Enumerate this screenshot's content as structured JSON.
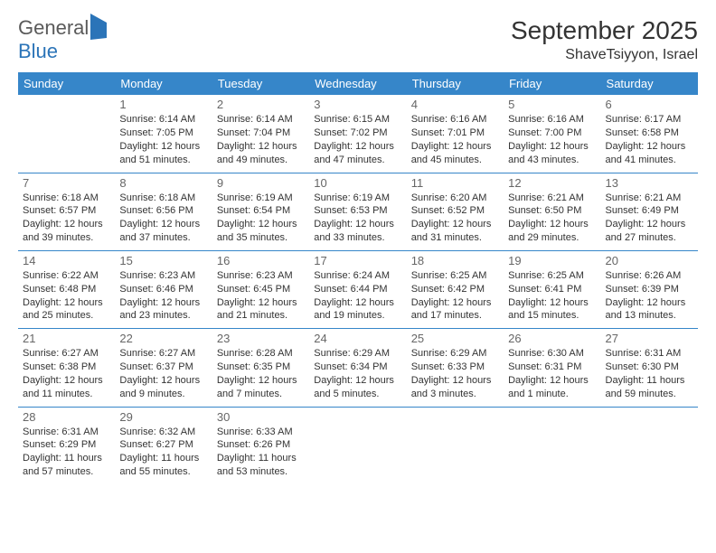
{
  "logo": {
    "word1": "General",
    "word2": "Blue"
  },
  "title": "September 2025",
  "location": "ShaveTsiyyon, Israel",
  "colors": {
    "header_bg": "#3686c9",
    "header_text": "#ffffff",
    "cell_border": "#3686c9",
    "daynum_color": "#666666",
    "body_text": "#333333",
    "logo_gray": "#5a5a5a",
    "logo_blue": "#2b74b8",
    "page_bg": "#ffffff"
  },
  "weekdays": [
    "Sunday",
    "Monday",
    "Tuesday",
    "Wednesday",
    "Thursday",
    "Friday",
    "Saturday"
  ],
  "weeks": [
    [
      null,
      {
        "n": "1",
        "sr": "Sunrise: 6:14 AM",
        "ss": "Sunset: 7:05 PM",
        "dl": "Daylight: 12 hours and 51 minutes."
      },
      {
        "n": "2",
        "sr": "Sunrise: 6:14 AM",
        "ss": "Sunset: 7:04 PM",
        "dl": "Daylight: 12 hours and 49 minutes."
      },
      {
        "n": "3",
        "sr": "Sunrise: 6:15 AM",
        "ss": "Sunset: 7:02 PM",
        "dl": "Daylight: 12 hours and 47 minutes."
      },
      {
        "n": "4",
        "sr": "Sunrise: 6:16 AM",
        "ss": "Sunset: 7:01 PM",
        "dl": "Daylight: 12 hours and 45 minutes."
      },
      {
        "n": "5",
        "sr": "Sunrise: 6:16 AM",
        "ss": "Sunset: 7:00 PM",
        "dl": "Daylight: 12 hours and 43 minutes."
      },
      {
        "n": "6",
        "sr": "Sunrise: 6:17 AM",
        "ss": "Sunset: 6:58 PM",
        "dl": "Daylight: 12 hours and 41 minutes."
      }
    ],
    [
      {
        "n": "7",
        "sr": "Sunrise: 6:18 AM",
        "ss": "Sunset: 6:57 PM",
        "dl": "Daylight: 12 hours and 39 minutes."
      },
      {
        "n": "8",
        "sr": "Sunrise: 6:18 AM",
        "ss": "Sunset: 6:56 PM",
        "dl": "Daylight: 12 hours and 37 minutes."
      },
      {
        "n": "9",
        "sr": "Sunrise: 6:19 AM",
        "ss": "Sunset: 6:54 PM",
        "dl": "Daylight: 12 hours and 35 minutes."
      },
      {
        "n": "10",
        "sr": "Sunrise: 6:19 AM",
        "ss": "Sunset: 6:53 PM",
        "dl": "Daylight: 12 hours and 33 minutes."
      },
      {
        "n": "11",
        "sr": "Sunrise: 6:20 AM",
        "ss": "Sunset: 6:52 PM",
        "dl": "Daylight: 12 hours and 31 minutes."
      },
      {
        "n": "12",
        "sr": "Sunrise: 6:21 AM",
        "ss": "Sunset: 6:50 PM",
        "dl": "Daylight: 12 hours and 29 minutes."
      },
      {
        "n": "13",
        "sr": "Sunrise: 6:21 AM",
        "ss": "Sunset: 6:49 PM",
        "dl": "Daylight: 12 hours and 27 minutes."
      }
    ],
    [
      {
        "n": "14",
        "sr": "Sunrise: 6:22 AM",
        "ss": "Sunset: 6:48 PM",
        "dl": "Daylight: 12 hours and 25 minutes."
      },
      {
        "n": "15",
        "sr": "Sunrise: 6:23 AM",
        "ss": "Sunset: 6:46 PM",
        "dl": "Daylight: 12 hours and 23 minutes."
      },
      {
        "n": "16",
        "sr": "Sunrise: 6:23 AM",
        "ss": "Sunset: 6:45 PM",
        "dl": "Daylight: 12 hours and 21 minutes."
      },
      {
        "n": "17",
        "sr": "Sunrise: 6:24 AM",
        "ss": "Sunset: 6:44 PM",
        "dl": "Daylight: 12 hours and 19 minutes."
      },
      {
        "n": "18",
        "sr": "Sunrise: 6:25 AM",
        "ss": "Sunset: 6:42 PM",
        "dl": "Daylight: 12 hours and 17 minutes."
      },
      {
        "n": "19",
        "sr": "Sunrise: 6:25 AM",
        "ss": "Sunset: 6:41 PM",
        "dl": "Daylight: 12 hours and 15 minutes."
      },
      {
        "n": "20",
        "sr": "Sunrise: 6:26 AM",
        "ss": "Sunset: 6:39 PM",
        "dl": "Daylight: 12 hours and 13 minutes."
      }
    ],
    [
      {
        "n": "21",
        "sr": "Sunrise: 6:27 AM",
        "ss": "Sunset: 6:38 PM",
        "dl": "Daylight: 12 hours and 11 minutes."
      },
      {
        "n": "22",
        "sr": "Sunrise: 6:27 AM",
        "ss": "Sunset: 6:37 PM",
        "dl": "Daylight: 12 hours and 9 minutes."
      },
      {
        "n": "23",
        "sr": "Sunrise: 6:28 AM",
        "ss": "Sunset: 6:35 PM",
        "dl": "Daylight: 12 hours and 7 minutes."
      },
      {
        "n": "24",
        "sr": "Sunrise: 6:29 AM",
        "ss": "Sunset: 6:34 PM",
        "dl": "Daylight: 12 hours and 5 minutes."
      },
      {
        "n": "25",
        "sr": "Sunrise: 6:29 AM",
        "ss": "Sunset: 6:33 PM",
        "dl": "Daylight: 12 hours and 3 minutes."
      },
      {
        "n": "26",
        "sr": "Sunrise: 6:30 AM",
        "ss": "Sunset: 6:31 PM",
        "dl": "Daylight: 12 hours and 1 minute."
      },
      {
        "n": "27",
        "sr": "Sunrise: 6:31 AM",
        "ss": "Sunset: 6:30 PM",
        "dl": "Daylight: 11 hours and 59 minutes."
      }
    ],
    [
      {
        "n": "28",
        "sr": "Sunrise: 6:31 AM",
        "ss": "Sunset: 6:29 PM",
        "dl": "Daylight: 11 hours and 57 minutes."
      },
      {
        "n": "29",
        "sr": "Sunrise: 6:32 AM",
        "ss": "Sunset: 6:27 PM",
        "dl": "Daylight: 11 hours and 55 minutes."
      },
      {
        "n": "30",
        "sr": "Sunrise: 6:33 AM",
        "ss": "Sunset: 6:26 PM",
        "dl": "Daylight: 11 hours and 53 minutes."
      },
      null,
      null,
      null,
      null
    ]
  ]
}
